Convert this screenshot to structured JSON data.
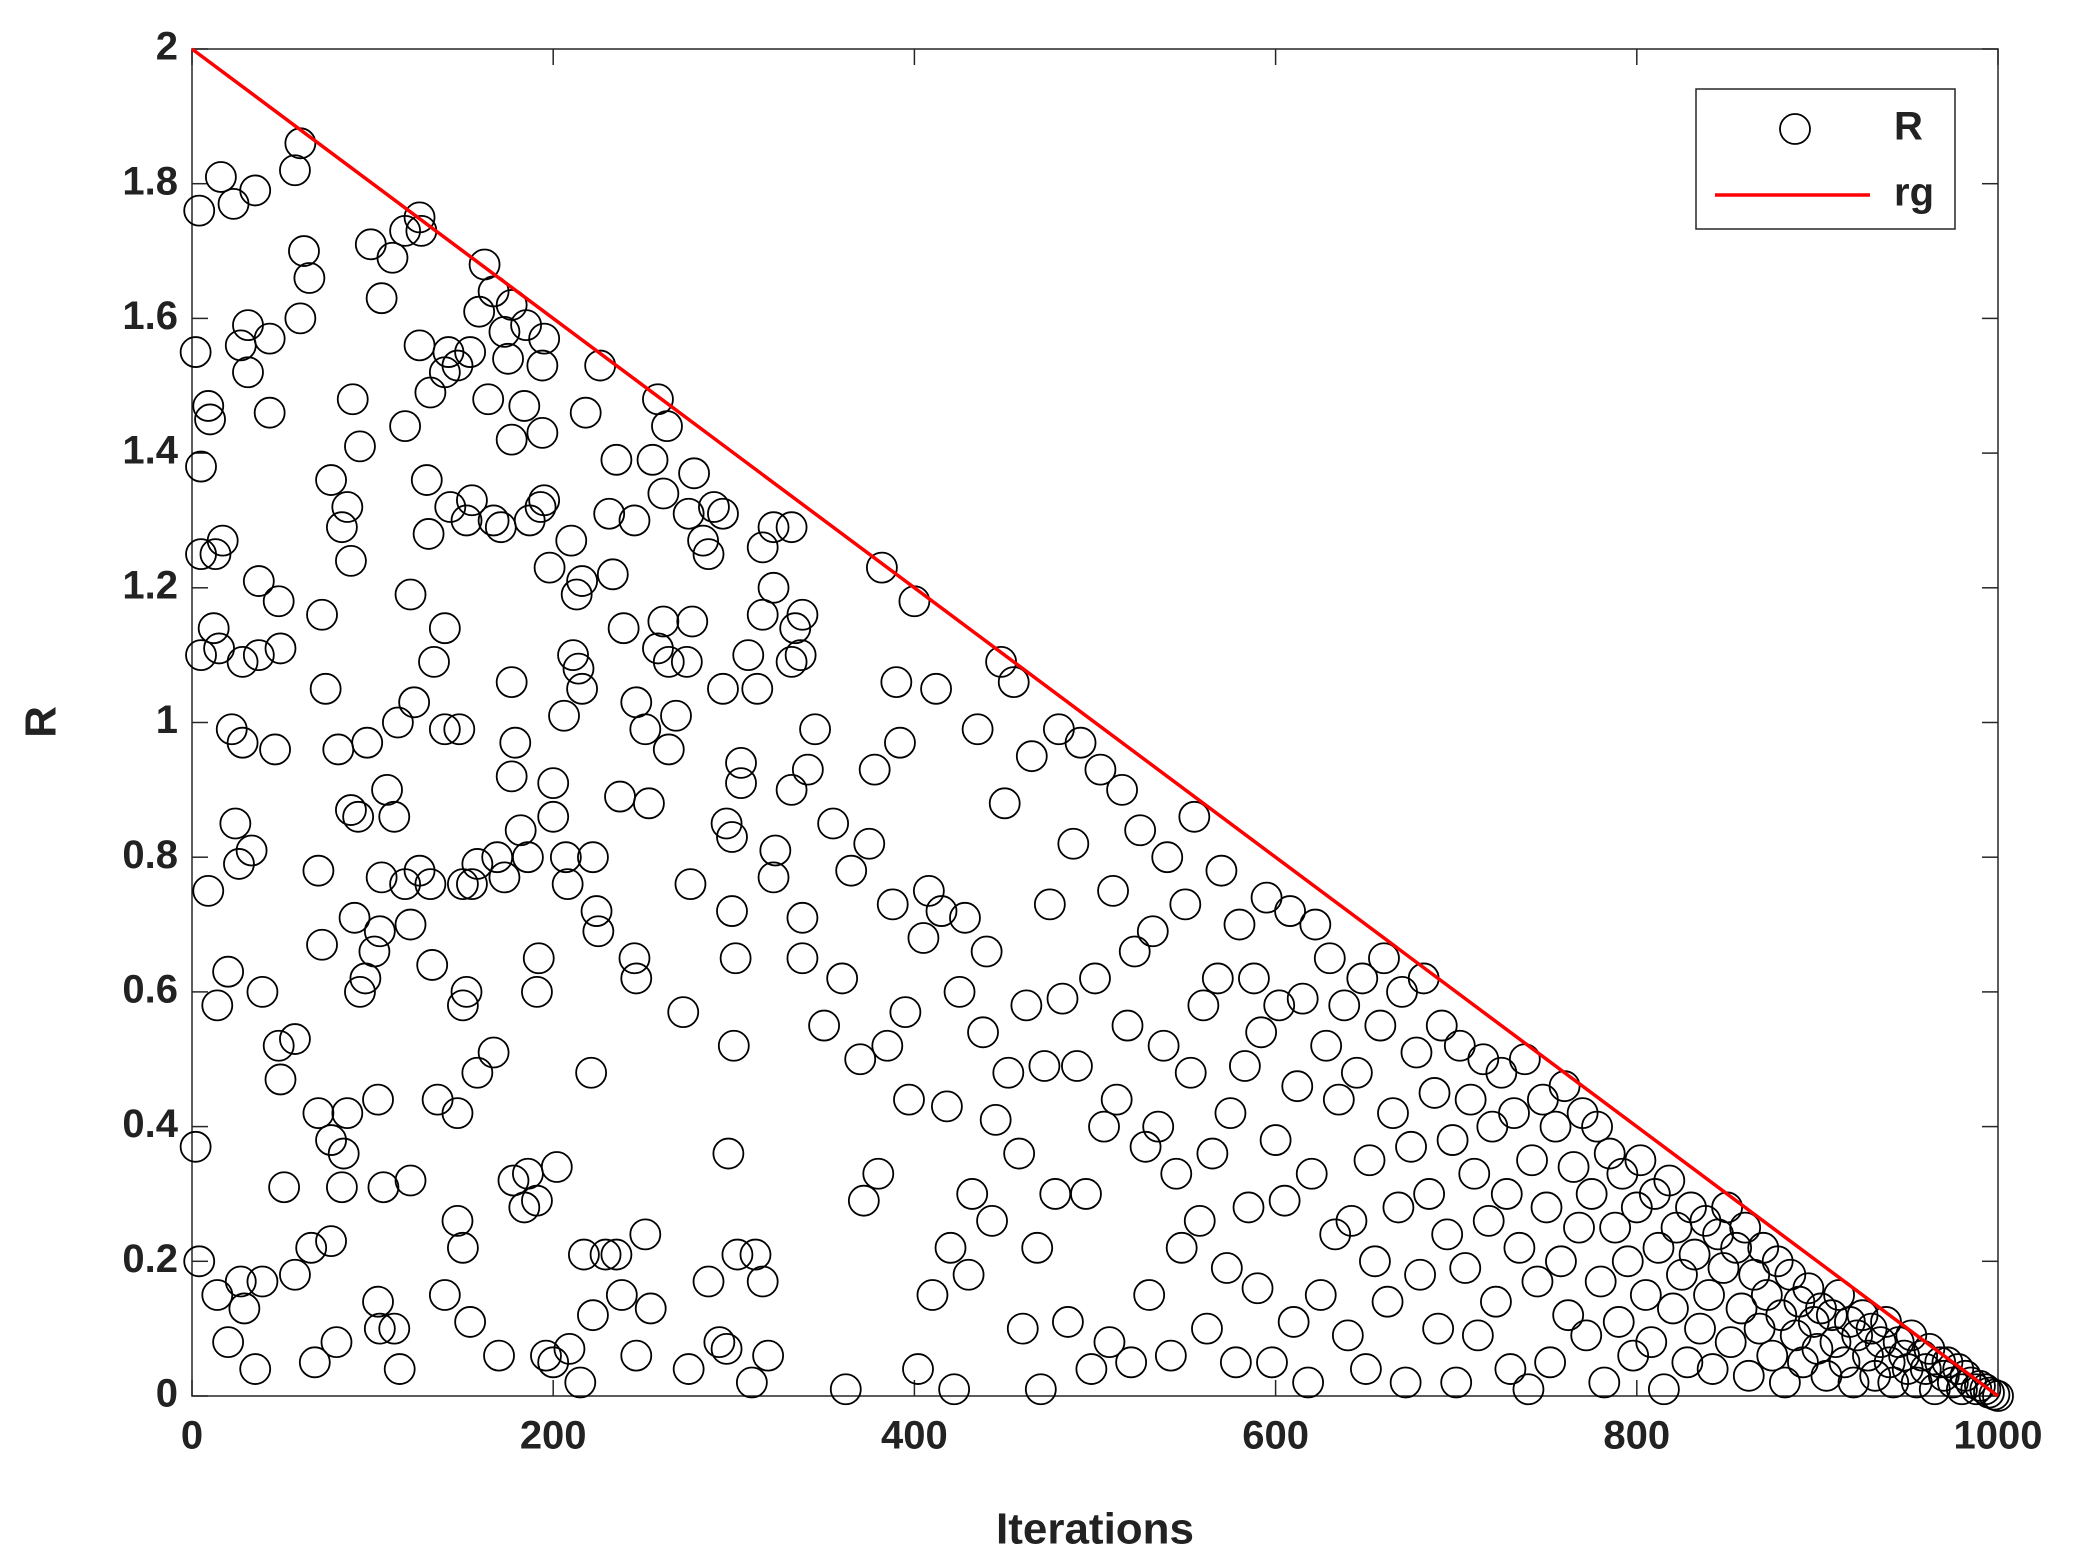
{
  "chart_data": {
    "type": "scatter",
    "xlabel": "Iterations",
    "ylabel": "R",
    "xlim": [
      0,
      1000
    ],
    "ylim": [
      0,
      2
    ],
    "xticks": [
      0,
      200,
      400,
      600,
      800,
      1000
    ],
    "yticks": [
      0,
      0.2,
      0.4,
      0.6,
      0.8,
      1,
      1.2,
      1.4,
      1.6,
      1.8,
      2
    ],
    "grid": false,
    "legend": "northeast",
    "series": [
      {
        "name": "R",
        "type": "scatter",
        "color": "#000000",
        "x": [
          2,
          4,
          16,
          23,
          35,
          60,
          57,
          62,
          65,
          60,
          31,
          27,
          43,
          31,
          43,
          9,
          10,
          5,
          5,
          17,
          13,
          37,
          48,
          72,
          12,
          5,
          15,
          28,
          37,
          49,
          74,
          22,
          28,
          46,
          24,
          33,
          9,
          26,
          20,
          39,
          14,
          48,
          57,
          49,
          51,
          2,
          4,
          14,
          27,
          39,
          29,
          20,
          35,
          57,
          66,
          68,
          80,
          77,
          70,
          77,
          83,
          84,
          72,
          70,
          90,
          81,
          88,
          92,
          97,
          96,
          93,
          101,
          103,
          86,
          104,
          105,
          108,
          112,
          115,
          104,
          103,
          112,
          106,
          77,
          86,
          83,
          88,
          89,
          93,
          99,
          105,
          111,
          118,
          126,
          127,
          118,
          121,
          114,
          123,
          126,
          130,
          132,
          140,
          142,
          147,
          154,
          131,
          134,
          140,
          140,
          148,
          118,
          121,
          126,
          132,
          133,
          136,
          147,
          150,
          152,
          150,
          158,
          147,
          150,
          154,
          140,
          121,
          155,
          158,
          143,
          155,
          152,
          159,
          162,
          167,
          164,
          167,
          171,
          175,
          173,
          177,
          185,
          195,
          194,
          177,
          184,
          187,
          193,
          195,
          194,
          177,
          179,
          177,
          182,
          169,
          186,
          173,
          167,
          178,
          184,
          191,
          202,
          186,
          170,
          196,
          200,
          209,
          215,
          217,
          222,
          229,
          235,
          238,
          246,
          254,
          251,
          192,
          191,
          200,
          200,
          206,
          207,
          208,
          210,
          216,
          213,
          198,
          211,
          214,
          216,
          218,
          226,
          222,
          224,
          225,
          221,
          235,
          231,
          233,
          237,
          239,
          245,
          246,
          245,
          246,
          251,
          253,
          258,
          255,
          261,
          263,
          264,
          261,
          258,
          264,
          268,
          275,
          276,
          272,
          278,
          277,
          274,
          283,
          286,
          289,
          294,
          294,
          296,
          299,
          301,
          299,
          300,
          297,
          302,
          286,
          292,
          275,
          296,
          310,
          319,
          312,
          316,
          304,
          304,
          308,
          313,
          316,
          316,
          322,
          332,
          322,
          334,
          332,
          337,
          338,
          322,
          323,
          332,
          338,
          338,
          341,
          345,
          350,
          355,
          360,
          362,
          365,
          370,
          372,
          375,
          378,
          380,
          382,
          385,
          388,
          390,
          392,
          395,
          397,
          400,
          402,
          405,
          408,
          410,
          412,
          415,
          418,
          420,
          422,
          425,
          428,
          430,
          432,
          435,
          438,
          440,
          443,
          445,
          448,
          450,
          452,
          455,
          458,
          460,
          462,
          465,
          468,
          470,
          472,
          475,
          478,
          480,
          482,
          485,
          488,
          490,
          492,
          495,
          498,
          500,
          503,
          505,
          508,
          510,
          512,
          515,
          518,
          520,
          522,
          525,
          528,
          530,
          532,
          535,
          538,
          540,
          542,
          545,
          548,
          550,
          553,
          555,
          558,
          560,
          562,
          565,
          568,
          570,
          573,
          575,
          578,
          580,
          583,
          585,
          588,
          590,
          592,
          595,
          598,
          600,
          602,
          605,
          608,
          610,
          612,
          615,
          618,
          620,
          622,
          625,
          628,
          630,
          633,
          635,
          638,
          640,
          642,
          645,
          648,
          650,
          652,
          655,
          658,
          660,
          662,
          665,
          668,
          670,
          672,
          675,
          678,
          680,
          682,
          685,
          688,
          690,
          692,
          695,
          698,
          700,
          702,
          705,
          708,
          710,
          712,
          715,
          718,
          720,
          722,
          725,
          728,
          730,
          732,
          735,
          738,
          740,
          742,
          745,
          748,
          750,
          752,
          755,
          758,
          760,
          762,
          765,
          768,
          770,
          772,
          775,
          778,
          780,
          782,
          785,
          788,
          790,
          792,
          795,
          798,
          800,
          802,
          805,
          808,
          810,
          812,
          815,
          818,
          820,
          822,
          825,
          828,
          830,
          832,
          835,
          838,
          840,
          842,
          845,
          848,
          850,
          852,
          855,
          858,
          860,
          862,
          865,
          868,
          870,
          872,
          875,
          878,
          880,
          882,
          885,
          888,
          890,
          892,
          895,
          898,
          900,
          902,
          905,
          908,
          910,
          912,
          915,
          918,
          920,
          922,
          925,
          928,
          930,
          932,
          935,
          938,
          940,
          942,
          945,
          948,
          950,
          952,
          955,
          958,
          960,
          962,
          965,
          968,
          970,
          972,
          975,
          978,
          980,
          982,
          985,
          988,
          990,
          993,
          995,
          998,
          1000
        ],
        "values": [
          1.55,
          1.76,
          1.81,
          1.77,
          1.79,
          1.86,
          1.82,
          1.7,
          1.66,
          1.6,
          1.59,
          1.56,
          1.57,
          1.52,
          1.46,
          1.47,
          1.45,
          1.38,
          1.25,
          1.27,
          1.25,
          1.21,
          1.18,
          1.16,
          1.14,
          1.1,
          1.11,
          1.09,
          1.1,
          1.11,
          1.05,
          0.99,
          0.97,
          0.96,
          0.85,
          0.81,
          0.75,
          0.79,
          0.63,
          0.6,
          0.58,
          0.52,
          0.53,
          0.47,
          0.31,
          0.37,
          0.2,
          0.15,
          0.17,
          0.17,
          0.13,
          0.08,
          0.04,
          0.18,
          0.22,
          0.05,
          0.08,
          0.23,
          0.42,
          0.38,
          0.31,
          0.36,
          0.67,
          0.78,
          0.71,
          0.96,
          0.87,
          0.86,
          0.97,
          0.62,
          0.6,
          0.66,
          0.44,
          0.42,
          0.69,
          0.77,
          0.9,
          0.86,
          0.04,
          0.1,
          0.14,
          0.1,
          0.31,
          1.36,
          1.32,
          1.29,
          1.24,
          1.48,
          1.41,
          1.71,
          1.63,
          1.69,
          1.73,
          1.75,
          1.73,
          1.44,
          1.19,
          1.0,
          1.03,
          1.56,
          1.36,
          1.49,
          1.52,
          1.55,
          1.53,
          1.55,
          1.28,
          1.09,
          1.14,
          0.99,
          0.99,
          0.76,
          0.7,
          0.78,
          0.76,
          0.64,
          0.44,
          0.42,
          0.58,
          0.6,
          0.76,
          0.48,
          0.26,
          0.22,
          0.11,
          0.15,
          0.32,
          0.76,
          0.79,
          1.32,
          1.33,
          1.3,
          1.61,
          1.68,
          1.64,
          1.48,
          1.3,
          1.29,
          1.54,
          1.58,
          1.62,
          1.59,
          1.57,
          1.53,
          1.42,
          1.47,
          1.3,
          1.32,
          1.33,
          1.43,
          1.06,
          0.97,
          0.92,
          0.84,
          0.8,
          0.8,
          0.77,
          0.51,
          0.32,
          0.28,
          0.29,
          0.34,
          0.33,
          0.06,
          0.06,
          0.05,
          0.07,
          0.02,
          0.21,
          0.12,
          0.21,
          0.21,
          0.15,
          0.06,
          0.13,
          0.24,
          0.65,
          0.6,
          0.91,
          0.86,
          1.01,
          0.8,
          0.76,
          1.27,
          1.21,
          1.19,
          1.23,
          1.1,
          1.08,
          1.05,
          1.46,
          1.53,
          0.8,
          0.72,
          0.69,
          0.48,
          1.39,
          1.31,
          1.22,
          0.89,
          1.14,
          1.3,
          1.03,
          0.65,
          0.62,
          0.99,
          0.88,
          1.48,
          1.39,
          1.34,
          1.44,
          0.96,
          1.15,
          1.11,
          1.09,
          1.01,
          1.31,
          0.76,
          0.57,
          1.37,
          1.15,
          1.09,
          1.27,
          1.25,
          1.32,
          1.31,
          1.05,
          0.85,
          0.83,
          0.65,
          0.72,
          0.52,
          0.36,
          0.21,
          0.17,
          0.08,
          0.04,
          0.07,
          0.02,
          0.06,
          0.21,
          0.17,
          0.94,
          0.91,
          1.1,
          1.05,
          1.16,
          1.26,
          1.29,
          1.29,
          1.2,
          1.14,
          1.09,
          1.1,
          1.16,
          0.77,
          0.81,
          0.9,
          0.65,
          0.71,
          0.93,
          0.99,
          0.55,
          0.85,
          0.62,
          0.01,
          0.78,
          0.5,
          0.29,
          0.82,
          0.93,
          0.33,
          1.23,
          0.52,
          0.73,
          1.06,
          0.97,
          0.57,
          0.44,
          1.18,
          0.04,
          0.68,
          0.75,
          0.15,
          1.05,
          0.72,
          0.43,
          0.22,
          0.01,
          0.6,
          0.71,
          0.18,
          0.3,
          0.99,
          0.54,
          0.66,
          0.26,
          0.41,
          1.09,
          0.88,
          0.48,
          1.06,
          0.36,
          0.1,
          0.58,
          0.95,
          0.22,
          0.01,
          0.49,
          0.73,
          0.3,
          0.99,
          0.59,
          0.11,
          0.82,
          0.49,
          0.97,
          0.3,
          0.04,
          0.62,
          0.93,
          0.4,
          0.08,
          0.75,
          0.44,
          0.9,
          0.55,
          0.05,
          0.66,
          0.84,
          0.37,
          0.15,
          0.69,
          0.4,
          0.52,
          0.8,
          0.06,
          0.33,
          0.22,
          0.73,
          0.48,
          0.86,
          0.26,
          0.58,
          0.1,
          0.36,
          0.62,
          0.78,
          0.19,
          0.42,
          0.05,
          0.7,
          0.49,
          0.28,
          0.62,
          0.16,
          0.54,
          0.74,
          0.05,
          0.38,
          0.58,
          0.29,
          0.72,
          0.11,
          0.46,
          0.59,
          0.02,
          0.33,
          0.7,
          0.15,
          0.52,
          0.65,
          0.24,
          0.44,
          0.58,
          0.09,
          0.26,
          0.48,
          0.62,
          0.04,
          0.35,
          0.2,
          0.55,
          0.65,
          0.14,
          0.42,
          0.28,
          0.6,
          0.02,
          0.37,
          0.51,
          0.18,
          0.62,
          0.3,
          0.45,
          0.1,
          0.55,
          0.24,
          0.38,
          0.02,
          0.52,
          0.19,
          0.44,
          0.33,
          0.09,
          0.5,
          0.26,
          0.4,
          0.14,
          0.48,
          0.3,
          0.04,
          0.42,
          0.22,
          0.5,
          0.01,
          0.35,
          0.17,
          0.44,
          0.28,
          0.05,
          0.4,
          0.2,
          0.46,
          0.12,
          0.34,
          0.25,
          0.42,
          0.09,
          0.3,
          0.4,
          0.17,
          0.02,
          0.36,
          0.25,
          0.11,
          0.33,
          0.2,
          0.06,
          0.28,
          0.35,
          0.15,
          0.08,
          0.3,
          0.22,
          0.01,
          0.32,
          0.13,
          0.25,
          0.18,
          0.05,
          0.28,
          0.21,
          0.1,
          0.26,
          0.15,
          0.04,
          0.24,
          0.19,
          0.28,
          0.08,
          0.22,
          0.13,
          0.25,
          0.03,
          0.18,
          0.1,
          0.22,
          0.15,
          0.06,
          0.2,
          0.12,
          0.02,
          0.18,
          0.09,
          0.14,
          0.05,
          0.16,
          0.11,
          0.07,
          0.13,
          0.03,
          0.12,
          0.08,
          0.15,
          0.05,
          0.11,
          0.02,
          0.09,
          0.12,
          0.06,
          0.1,
          0.03,
          0.08,
          0.11,
          0.05,
          0.02,
          0.08,
          0.06,
          0.04,
          0.09,
          0.02,
          0.06,
          0.04,
          0.07,
          0.01,
          0.05,
          0.03,
          0.05,
          0.02,
          0.04,
          0.01,
          0.03,
          0.02,
          0.01,
          0.015,
          0.01,
          0.005,
          0.002,
          0
        ]
      },
      {
        "name": "rg",
        "type": "line",
        "color": "#ff0000",
        "x": [
          0,
          1000
        ],
        "values": [
          2,
          0
        ]
      }
    ]
  }
}
